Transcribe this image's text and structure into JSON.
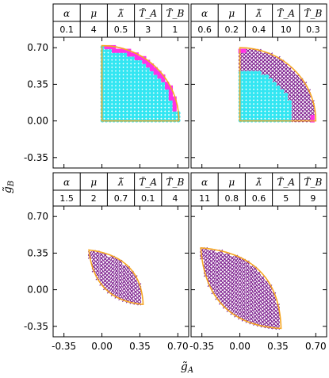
{
  "figure": {
    "xlabel": "g̃",
    "xlabel_sub": "A",
    "ylabel": "g̃",
    "ylabel_sub": "B"
  },
  "colors": {
    "cyan": "#33e6f2",
    "magenta": "#ff33e6",
    "purple": "#7a1a8c",
    "boundary": "#f5a623"
  },
  "chart_data": [
    {
      "type": "scatter",
      "panel": "top-left",
      "params": {
        "headers": [
          "α",
          "μ",
          "λ̃",
          "T̃_A",
          "T̃_B"
        ],
        "values": [
          "0.1",
          "4",
          "0.5",
          "3",
          "1"
        ]
      },
      "xlim": [
        -0.45,
        0.8
      ],
      "ylim": [
        -0.45,
        0.8
      ],
      "xticks": [
        "-0.35",
        "0.00",
        "0.35",
        "0.70"
      ],
      "yticks": [
        "-0.35",
        "0.00",
        "0.35",
        "0.70"
      ],
      "region": "quarter",
      "boundary": {
        "corner": [
          0,
          0
        ],
        "ymax": 0.72,
        "xmax": 0.71
      }
    },
    {
      "type": "scatter",
      "panel": "top-right",
      "params": {
        "headers": [
          "α",
          "μ",
          "λ̃",
          "T̃_A",
          "T̃_B"
        ],
        "values": [
          "0.6",
          "0.2",
          "0.4",
          "10",
          "0.3"
        ]
      },
      "xlim": [
        -0.45,
        0.8
      ],
      "ylim": [
        -0.45,
        0.8
      ],
      "xticks": [
        "-0.35",
        "0.00",
        "0.35",
        "0.70"
      ],
      "yticks": [
        "-0.35",
        "0.00",
        "0.35",
        "0.70"
      ],
      "region": "quarter",
      "boundary": {
        "corner": [
          0,
          0
        ],
        "ymax": 0.7,
        "xmax": 0.7
      }
    },
    {
      "type": "scatter",
      "panel": "bottom-left",
      "params": {
        "headers": [
          "α",
          "μ",
          "λ̃",
          "T̃_A",
          "T̃_B"
        ],
        "values": [
          "1.5",
          "2",
          "0.7",
          "0.1",
          "4"
        ]
      },
      "xlim": [
        -0.45,
        0.8
      ],
      "ylim": [
        -0.45,
        0.8
      ],
      "xticks": [
        "-0.35",
        "0.00",
        "0.35",
        "0.70"
      ],
      "yticks": [
        "-0.35",
        "0.00",
        "0.35",
        "0.70"
      ],
      "region": "lens",
      "boundary": {
        "start": [
          -0.12,
          0.38
        ],
        "end": [
          0.38,
          -0.14
        ]
      }
    },
    {
      "type": "scatter",
      "panel": "bottom-right",
      "params": {
        "headers": [
          "α",
          "μ",
          "λ̃",
          "T̃_A",
          "T̃_B"
        ],
        "values": [
          "11",
          "0.8",
          "0.6",
          "5",
          "9"
        ]
      },
      "xlim": [
        -0.45,
        0.8
      ],
      "ylim": [
        -0.45,
        0.8
      ],
      "xticks": [
        "-0.35",
        "0.00",
        "0.35",
        "0.70"
      ],
      "yticks": [
        "-0.35",
        "0.00",
        "0.35",
        "0.70"
      ],
      "region": "lens",
      "boundary": {
        "start": [
          -0.36,
          0.4
        ],
        "end": [
          0.38,
          -0.37
        ]
      }
    }
  ]
}
